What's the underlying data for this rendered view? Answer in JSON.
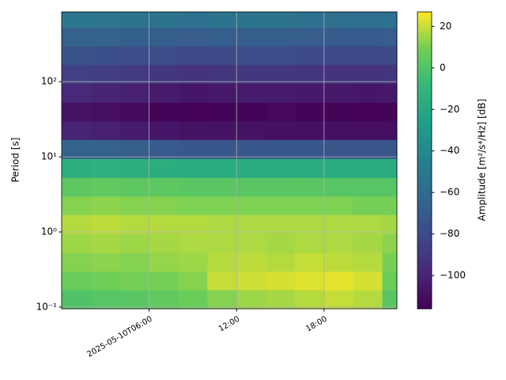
{
  "chart_data": {
    "type": "heatmap",
    "y_label": "Period [s]",
    "colorbar_label": "Amplitude [m²/s⁴/Hz] [dB]",
    "colormap": "viridis",
    "x_bins": [
      "2025-05-10T00:00",
      "2025-05-10T02:00",
      "2025-05-10T04:00",
      "2025-05-10T06:00",
      "2025-05-10T08:00",
      "2025-05-10T10:00",
      "2025-05-10T12:00",
      "2025-05-10T14:00",
      "2025-05-10T16:00",
      "2025-05-10T18:00",
      "2025-05-10T20:00",
      "2025-05-10T22:00",
      "2025-05-10T23:00"
    ],
    "y_bins": [
      0.095,
      0.17,
      0.3,
      0.53,
      0.95,
      1.7,
      3,
      5.3,
      9.5,
      17,
      30,
      53,
      95,
      170,
      300,
      530,
      850
    ],
    "z": [
      [
        0,
        2,
        3,
        5,
        8,
        12,
        15,
        16,
        18,
        20,
        18,
        3
      ],
      [
        8,
        9,
        10,
        10,
        12,
        20,
        21,
        22,
        23,
        24,
        22,
        8
      ],
      [
        12,
        13,
        12,
        14,
        15,
        18,
        19,
        18,
        20,
        19,
        18,
        10
      ],
      [
        15,
        16,
        15,
        16,
        17,
        17,
        17,
        16,
        17,
        17,
        16,
        13
      ],
      [
        18,
        19,
        18,
        18,
        18,
        17,
        17,
        17,
        17,
        17,
        17,
        16
      ],
      [
        12,
        13,
        12,
        12,
        11,
        11,
        11,
        11,
        11,
        11,
        10,
        10
      ],
      [
        4,
        5,
        4,
        4,
        3,
        3,
        3,
        3,
        3,
        2,
        2,
        2
      ],
      [
        -15,
        -14,
        -15,
        -16,
        -17,
        -17,
        -17,
        -17,
        -17,
        -18,
        -18,
        -18
      ],
      [
        -65,
        -66,
        -68,
        -70,
        -72,
        -72,
        -72,
        -72,
        -72,
        -73,
        -73,
        -73
      ],
      [
        -100,
        -102,
        -104,
        -106,
        -108,
        -108,
        -108,
        -109,
        -109,
        -109,
        -110,
        -110
      ],
      [
        -108,
        -110,
        -112,
        -114,
        -115,
        -114,
        -114,
        -113,
        -114,
        -114,
        -115,
        -114
      ],
      [
        -98,
        -100,
        -102,
        -104,
        -106,
        -105,
        -104,
        -104,
        -105,
        -105,
        -106,
        -105
      ],
      [
        -85,
        -86,
        -88,
        -90,
        -92,
        -91,
        -90,
        -90,
        -91,
        -92,
        -92,
        -91
      ],
      [
        -75,
        -76,
        -77,
        -78,
        -80,
        -79,
        -78,
        -78,
        -79,
        -80,
        -80,
        -79
      ],
      [
        -66,
        -66,
        -67,
        -68,
        -69,
        -68,
        -68,
        -68,
        -69,
        -70,
        -70,
        -69
      ],
      [
        -52,
        -53,
        -54,
        -55,
        -56,
        -55,
        -55,
        -55,
        -56,
        -57,
        -57,
        -56
      ]
    ],
    "xlim": [
      "2025-05-10T00:00",
      "2025-05-10T23:00"
    ],
    "xticks": [
      {
        "value": "2025-05-10T06:00",
        "label": "2025-05-10T06:00"
      },
      {
        "value": "2025-05-10T12:00",
        "label": "12:00"
      },
      {
        "value": "2025-05-10T18:00",
        "label": "18:00"
      }
    ],
    "ylim": [
      0.095,
      850
    ],
    "y_log": true,
    "yticks": [
      {
        "value": 0.1,
        "label": "10⁻¹"
      },
      {
        "value": 1,
        "label": "10⁰"
      },
      {
        "value": 10,
        "label": "10¹"
      },
      {
        "value": 100,
        "label": "10²"
      }
    ],
    "grid": true,
    "clim": [
      -116,
      27
    ],
    "cticks": [
      20,
      0,
      {
        "value": -20,
        "label": "−20"
      },
      {
        "value": -40,
        "label": "−40"
      },
      {
        "value": -60,
        "label": "−60"
      },
      {
        "value": -80,
        "label": "−80"
      },
      {
        "value": -100,
        "label": "−100"
      }
    ]
  }
}
